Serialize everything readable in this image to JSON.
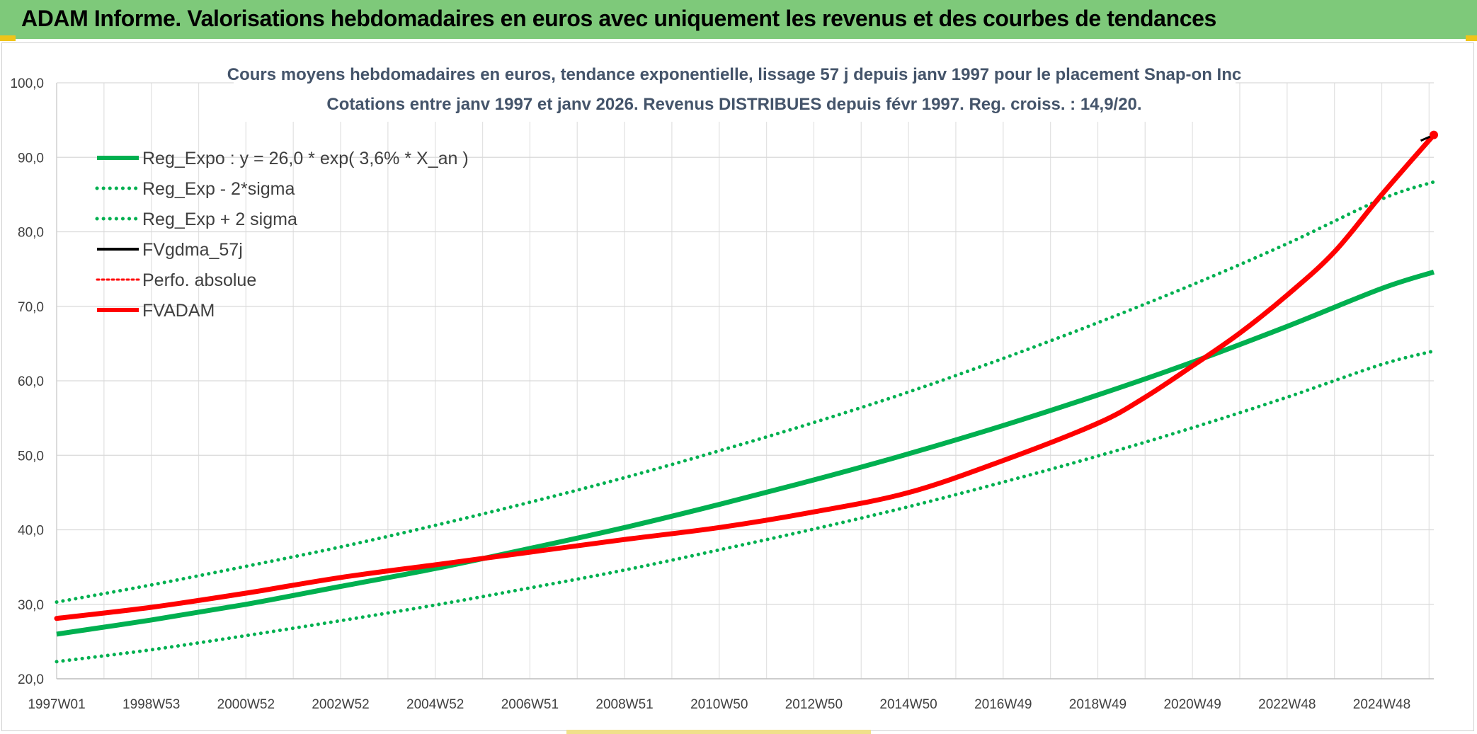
{
  "banner": {
    "title": "ADAM Informe. Valorisations hebdomadaires en euros avec uniquement les revenus et des courbes de tendances"
  },
  "chart_data": {
    "type": "line",
    "title": "Cours moyens hebdomadaires en euros, tendance exponentielle, lissage 57 j depuis janv 1997 pour le placement Snap-on Inc",
    "subtitle": "Cotations entre janv 1997 et janv 2026. Revenus DISTRIBUES depuis févr 1997. Reg. croiss. : 14,9/20.",
    "xlabel": "",
    "ylabel": "",
    "ylim": [
      20,
      100
    ],
    "y_ticks": [
      "20,0",
      "30,0",
      "40,0",
      "50,0",
      "60,0",
      "70,0",
      "80,0",
      "90,0",
      "100,0"
    ],
    "x_tick_labels": [
      "1997W01",
      "1998W53",
      "2000W52",
      "2002W52",
      "2004W52",
      "2006W51",
      "2008W51",
      "2010W50",
      "2012W50",
      "2014W50",
      "2016W49",
      "2018W49",
      "2020W49",
      "2022W48",
      "2024W48"
    ],
    "x_tick_years": [
      1997,
      1999,
      2001,
      2003,
      2005,
      2007,
      2009,
      2011,
      2013,
      2015,
      2017,
      2019,
      2021,
      2023,
      2025
    ],
    "xlim": [
      1997,
      2026.1
    ],
    "grid": true,
    "legend_position": "top-left",
    "series": [
      {
        "name": "Reg_Expo : y = 26,0 * exp( 3,6% *  X_an )",
        "color": "#00b050",
        "style": "solid",
        "x": [
          1997,
          1999,
          2001,
          2003,
          2005,
          2007,
          2009,
          2011,
          2013,
          2015,
          2017,
          2019,
          2021,
          2023,
          2025,
          2026.1
        ],
        "y": [
          26.0,
          27.9,
          30.0,
          32.4,
          34.8,
          37.5,
          40.3,
          43.4,
          46.7,
          50.2,
          54.0,
          58.1,
          62.5,
          67.3,
          72.4,
          74.6
        ]
      },
      {
        "name": "Reg_Exp - 2*sigma",
        "color": "#00b050",
        "style": "dotted",
        "x": [
          1997,
          1999,
          2001,
          2003,
          2005,
          2007,
          2009,
          2011,
          2013,
          2015,
          2017,
          2019,
          2021,
          2023,
          2025,
          2026.1
        ],
        "y": [
          22.3,
          23.9,
          25.8,
          27.8,
          29.9,
          32.2,
          34.6,
          37.3,
          40.1,
          43.1,
          46.4,
          49.9,
          53.7,
          57.8,
          62.2,
          64.0
        ]
      },
      {
        "name": "Reg_Exp + 2 sigma",
        "color": "#00b050",
        "style": "dotted",
        "x": [
          1997,
          1999,
          2001,
          2003,
          2005,
          2007,
          2009,
          2011,
          2013,
          2015,
          2017,
          2019,
          2021,
          2023,
          2025,
          2026.1
        ],
        "y": [
          30.3,
          32.6,
          35.1,
          37.7,
          40.6,
          43.7,
          47.0,
          50.6,
          54.4,
          58.5,
          63.0,
          67.8,
          72.9,
          78.4,
          84.4,
          86.7
        ]
      },
      {
        "name": "FVgdma_57j",
        "color": "#000000",
        "style": "solid",
        "x": [
          1997,
          1999,
          2001,
          2003,
          2005,
          2007,
          2009,
          2011,
          2013,
          2015,
          2017,
          2019,
          2020,
          2021,
          2022,
          2023,
          2024,
          2025,
          2026.1
        ],
        "y": [
          28.1,
          29.6,
          31.5,
          33.6,
          35.3,
          37.0,
          38.7,
          40.3,
          42.4,
          45.0,
          49.3,
          54.3,
          57.8,
          62.0,
          66.4,
          71.5,
          77.3,
          85.0,
          93.0
        ]
      },
      {
        "name": "Perfo. absolue",
        "color": "#ff0000",
        "style": "dotted",
        "x": [
          1997,
          1999,
          2001,
          2003,
          2005,
          2007,
          2009,
          2011,
          2013,
          2015,
          2017,
          2019,
          2020,
          2021,
          2022,
          2023,
          2024,
          2025,
          2026.1
        ],
        "y": [
          28.1,
          29.6,
          31.5,
          33.6,
          35.3,
          37.0,
          38.7,
          40.3,
          42.4,
          45.0,
          49.3,
          54.3,
          57.8,
          62.0,
          66.4,
          71.5,
          77.3,
          85.0,
          93.0
        ]
      },
      {
        "name": "FVADAM",
        "color": "#ff0000",
        "style": "solid",
        "x": [
          1997,
          1999,
          2001,
          2003,
          2005,
          2007,
          2009,
          2011,
          2013,
          2015,
          2017,
          2019,
          2020,
          2021,
          2022,
          2023,
          2024,
          2025,
          2026.1
        ],
        "y": [
          28.1,
          29.6,
          31.5,
          33.6,
          35.3,
          37.0,
          38.7,
          40.3,
          42.4,
          45.0,
          49.3,
          54.3,
          57.8,
          62.0,
          66.4,
          71.5,
          77.3,
          85.0,
          93.0
        ]
      }
    ]
  }
}
